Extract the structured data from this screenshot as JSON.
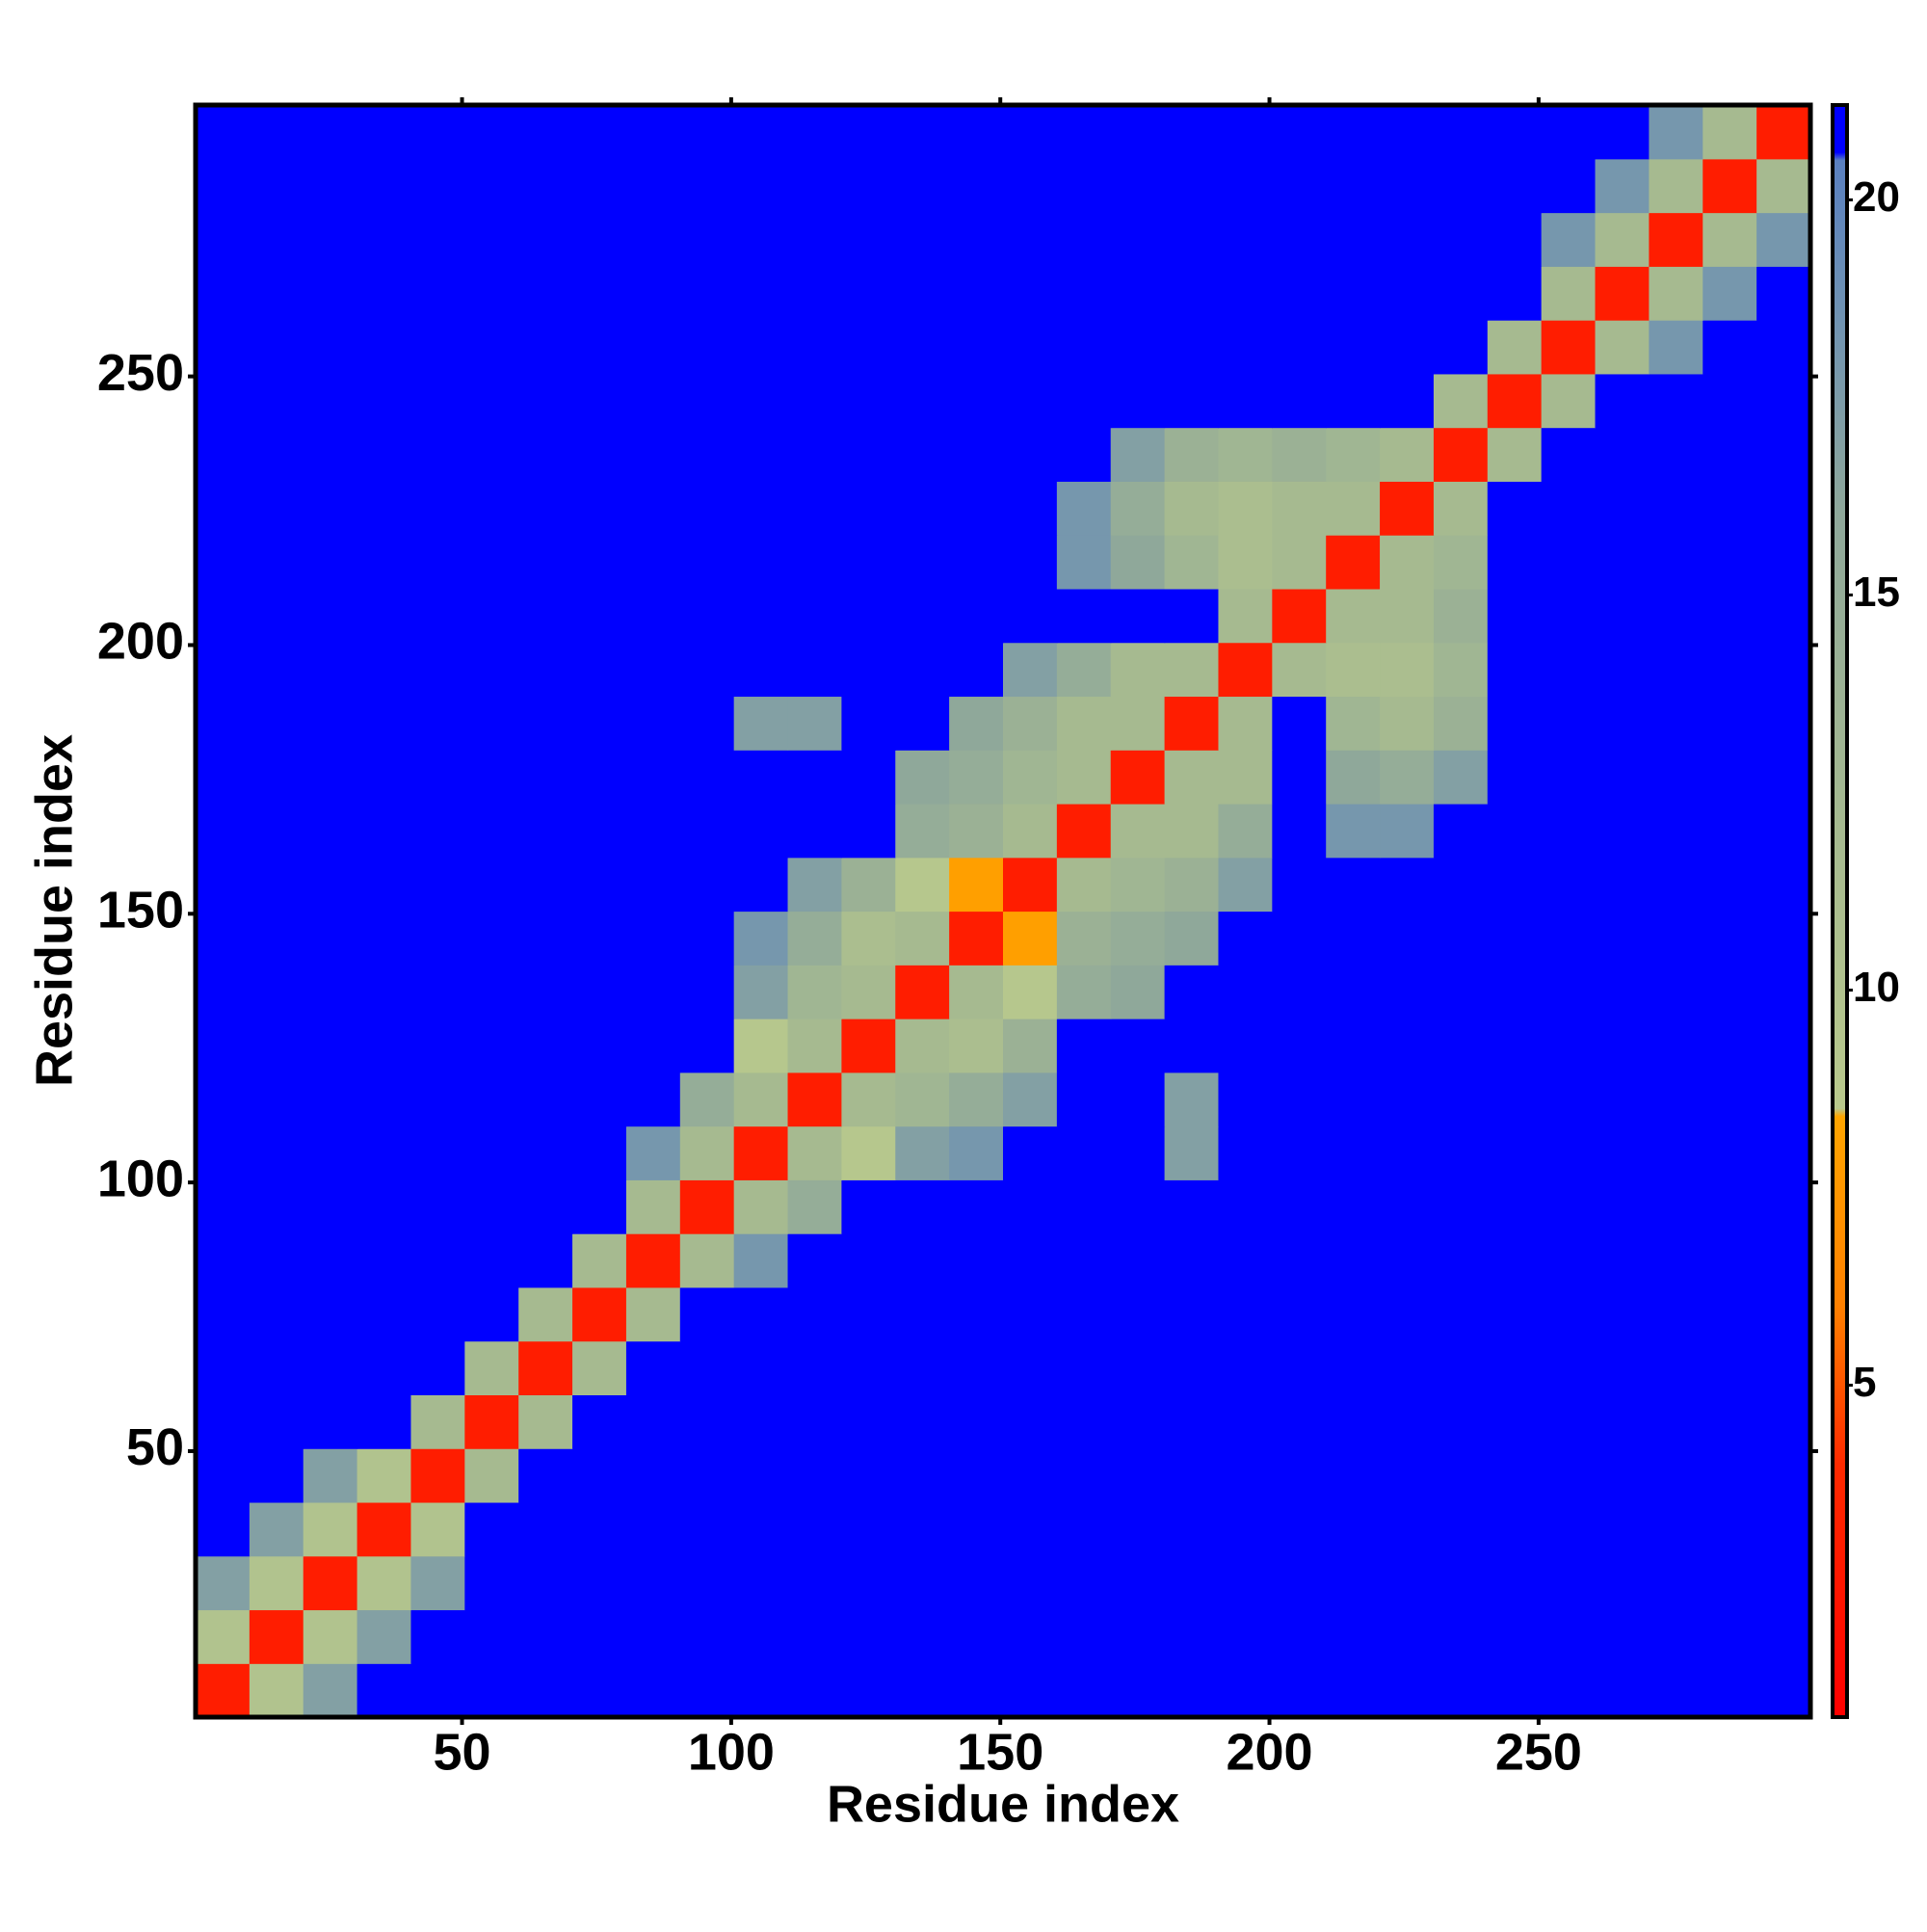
{
  "chart_data": {
    "type": "heatmap",
    "x_label": "Residue index",
    "y_label": "Residue index",
    "bins": [
      0.5,
      10.5,
      20.5,
      30.5,
      40.5,
      50.5,
      60.5,
      70.5,
      80.5,
      90.5,
      100.5,
      110.5,
      120.5,
      130.5,
      140.5,
      150.5,
      160.5,
      170.5,
      180.5,
      190.5,
      200.5,
      210.5,
      220.5,
      230.5,
      240.5,
      250.5,
      260.5,
      270.5,
      280.5,
      290.5,
      300.5
    ],
    "xlim": [
      0.5,
      300.5
    ],
    "ylim": [
      0.5,
      300.5
    ],
    "xticks": [
      50,
      100,
      150,
      200,
      250
    ],
    "yticks": [
      50,
      100,
      150,
      200,
      250
    ],
    "clim": [
      0.8,
      21.2
    ],
    "cticks": [
      5,
      10,
      15,
      20
    ],
    "colorscale": [
      [
        0.8,
        "#ff0000"
      ],
      [
        4,
        "#ff2a00"
      ],
      [
        6,
        "#ff8000"
      ],
      [
        8.4,
        "#ffa500"
      ],
      [
        8.5,
        "#b9c98c"
      ],
      [
        12,
        "#a6ba90"
      ],
      [
        16,
        "#8fa89a"
      ],
      [
        18.5,
        "#7093b2"
      ],
      [
        20.5,
        "#5a80c0"
      ],
      [
        20.6,
        "#0000ff"
      ],
      [
        21.2,
        "#0000ff"
      ]
    ],
    "z": [
      [
        3,
        10,
        17,
        21,
        21,
        21,
        21,
        21,
        21,
        21,
        21,
        21,
        21,
        21,
        21,
        21,
        21,
        21,
        21,
        21,
        21,
        21,
        21,
        21,
        21,
        21,
        21,
        21,
        21,
        21
      ],
      [
        10,
        3,
        10,
        17,
        21,
        21,
        21,
        21,
        21,
        21,
        21,
        21,
        21,
        21,
        21,
        21,
        21,
        21,
        21,
        21,
        21,
        21,
        21,
        21,
        21,
        21,
        21,
        21,
        21,
        21
      ],
      [
        17,
        10,
        3,
        10,
        17,
        21,
        21,
        21,
        21,
        21,
        21,
        21,
        21,
        21,
        21,
        21,
        21,
        21,
        21,
        21,
        21,
        21,
        21,
        21,
        21,
        21,
        21,
        21,
        21,
        21
      ],
      [
        21,
        17,
        10,
        3,
        10,
        21,
        21,
        21,
        21,
        21,
        21,
        21,
        21,
        21,
        21,
        21,
        21,
        21,
        21,
        21,
        21,
        21,
        21,
        21,
        21,
        21,
        21,
        21,
        21,
        21
      ],
      [
        21,
        21,
        17,
        10,
        3,
        12,
        21,
        21,
        21,
        21,
        21,
        21,
        21,
        21,
        21,
        21,
        21,
        21,
        21,
        21,
        21,
        21,
        21,
        21,
        21,
        21,
        21,
        21,
        21,
        21
      ],
      [
        21,
        21,
        21,
        21,
        12,
        3,
        12,
        21,
        21,
        21,
        21,
        21,
        21,
        21,
        21,
        21,
        21,
        21,
        21,
        21,
        21,
        21,
        21,
        21,
        21,
        21,
        21,
        21,
        21,
        21
      ],
      [
        21,
        21,
        21,
        21,
        21,
        12,
        3,
        12,
        21,
        21,
        21,
        21,
        21,
        21,
        21,
        21,
        21,
        21,
        21,
        21,
        21,
        21,
        21,
        21,
        21,
        21,
        21,
        21,
        21,
        21
      ],
      [
        21,
        21,
        21,
        21,
        21,
        21,
        12,
        3,
        12,
        21,
        21,
        21,
        21,
        21,
        21,
        21,
        21,
        21,
        21,
        21,
        21,
        21,
        21,
        21,
        21,
        21,
        21,
        21,
        21,
        21
      ],
      [
        21,
        21,
        21,
        21,
        21,
        21,
        21,
        12,
        3,
        12,
        18,
        21,
        21,
        21,
        21,
        21,
        21,
        21,
        21,
        21,
        21,
        21,
        21,
        21,
        21,
        21,
        21,
        21,
        21,
        21
      ],
      [
        21,
        21,
        21,
        21,
        21,
        21,
        21,
        21,
        12,
        3,
        12,
        15,
        21,
        21,
        21,
        21,
        21,
        21,
        21,
        21,
        21,
        21,
        21,
        21,
        21,
        21,
        21,
        21,
        21,
        21
      ],
      [
        21,
        21,
        21,
        21,
        21,
        21,
        21,
        21,
        18,
        12,
        3,
        12,
        9,
        17,
        18,
        21,
        21,
        21,
        17,
        21,
        21,
        21,
        21,
        21,
        21,
        21,
        21,
        21,
        21,
        21
      ],
      [
        21,
        21,
        21,
        21,
        21,
        21,
        21,
        21,
        21,
        15,
        12,
        3,
        12,
        13,
        15,
        17,
        21,
        21,
        17,
        21,
        21,
        21,
        21,
        21,
        21,
        21,
        21,
        21,
        21,
        21
      ],
      [
        21,
        21,
        21,
        21,
        21,
        21,
        21,
        21,
        21,
        21,
        9,
        12,
        3,
        12,
        11,
        14,
        21,
        21,
        21,
        21,
        21,
        21,
        21,
        21,
        21,
        21,
        21,
        21,
        21,
        21
      ],
      [
        21,
        21,
        21,
        21,
        21,
        21,
        21,
        21,
        21,
        21,
        17,
        13,
        12,
        3,
        12,
        9,
        15,
        16,
        21,
        21,
        21,
        21,
        21,
        21,
        21,
        21,
        21,
        21,
        21,
        21
      ],
      [
        21,
        21,
        21,
        21,
        21,
        21,
        21,
        21,
        21,
        21,
        18,
        15,
        11,
        12,
        3,
        8,
        14,
        15,
        16,
        21,
        21,
        21,
        21,
        21,
        21,
        21,
        21,
        21,
        21,
        21
      ],
      [
        21,
        21,
        21,
        21,
        21,
        21,
        21,
        21,
        21,
        21,
        21,
        17,
        14,
        9,
        8,
        3,
        12,
        13,
        14,
        17,
        21,
        21,
        21,
        21,
        21,
        21,
        21,
        21,
        21,
        21
      ],
      [
        21,
        21,
        21,
        21,
        21,
        21,
        21,
        21,
        21,
        21,
        21,
        21,
        21,
        15,
        14,
        12,
        3,
        12,
        12,
        15,
        21,
        18,
        18,
        21,
        21,
        21,
        21,
        21,
        21,
        21
      ],
      [
        21,
        21,
        21,
        21,
        21,
        21,
        21,
        21,
        21,
        21,
        21,
        21,
        21,
        16,
        15,
        13,
        12,
        3,
        12,
        12,
        21,
        16,
        15,
        17,
        21,
        21,
        21,
        21,
        21,
        21
      ],
      [
        21,
        21,
        21,
        21,
        21,
        21,
        21,
        21,
        21,
        21,
        17,
        17,
        21,
        21,
        16,
        14,
        12,
        12,
        3,
        12,
        21,
        13,
        12,
        14,
        21,
        21,
        21,
        21,
        21,
        21
      ],
      [
        21,
        21,
        21,
        21,
        21,
        21,
        21,
        21,
        21,
        21,
        21,
        21,
        21,
        21,
        21,
        17,
        15,
        12,
        12,
        3,
        12,
        11,
        11,
        13,
        21,
        21,
        21,
        21,
        21,
        21
      ],
      [
        21,
        21,
        21,
        21,
        21,
        21,
        21,
        21,
        21,
        21,
        21,
        21,
        21,
        21,
        21,
        21,
        21,
        21,
        21,
        12,
        3,
        12,
        12,
        14,
        21,
        21,
        21,
        21,
        21,
        21
      ],
      [
        21,
        21,
        21,
        21,
        21,
        21,
        21,
        21,
        21,
        21,
        21,
        21,
        21,
        21,
        21,
        21,
        18,
        16,
        13,
        11,
        12,
        3,
        12,
        13,
        21,
        21,
        21,
        21,
        21,
        21
      ],
      [
        21,
        21,
        21,
        21,
        21,
        21,
        21,
        21,
        21,
        21,
        21,
        21,
        21,
        21,
        21,
        21,
        18,
        15,
        12,
        11,
        12,
        12,
        3,
        12,
        21,
        21,
        21,
        21,
        21,
        21
      ],
      [
        21,
        21,
        21,
        21,
        21,
        21,
        21,
        21,
        21,
        21,
        21,
        21,
        21,
        21,
        21,
        21,
        21,
        17,
        14,
        13,
        14,
        13,
        12,
        3,
        12,
        21,
        21,
        21,
        21,
        21
      ],
      [
        21,
        21,
        21,
        21,
        21,
        21,
        21,
        21,
        21,
        21,
        21,
        21,
        21,
        21,
        21,
        21,
        21,
        21,
        21,
        21,
        21,
        21,
        21,
        12,
        3,
        12,
        21,
        21,
        21,
        21
      ],
      [
        21,
        21,
        21,
        21,
        21,
        21,
        21,
        21,
        21,
        21,
        21,
        21,
        21,
        21,
        21,
        21,
        21,
        21,
        21,
        21,
        21,
        21,
        21,
        21,
        12,
        3,
        12,
        18,
        21,
        21
      ],
      [
        21,
        21,
        21,
        21,
        21,
        21,
        21,
        21,
        21,
        21,
        21,
        21,
        21,
        21,
        21,
        21,
        21,
        21,
        21,
        21,
        21,
        21,
        21,
        21,
        21,
        12,
        3,
        12,
        18,
        21
      ],
      [
        21,
        21,
        21,
        21,
        21,
        21,
        21,
        21,
        21,
        21,
        21,
        21,
        21,
        21,
        21,
        21,
        21,
        21,
        21,
        21,
        21,
        21,
        21,
        21,
        21,
        18,
        12,
        3,
        12,
        18
      ],
      [
        21,
        21,
        21,
        21,
        21,
        21,
        21,
        21,
        21,
        21,
        21,
        21,
        21,
        21,
        21,
        21,
        21,
        21,
        21,
        21,
        21,
        21,
        21,
        21,
        21,
        21,
        18,
        12,
        3,
        12
      ],
      [
        21,
        21,
        21,
        21,
        21,
        21,
        21,
        21,
        21,
        21,
        21,
        21,
        21,
        21,
        21,
        21,
        21,
        21,
        21,
        21,
        21,
        21,
        21,
        21,
        21,
        21,
        21,
        18,
        12,
        3
      ]
    ]
  }
}
